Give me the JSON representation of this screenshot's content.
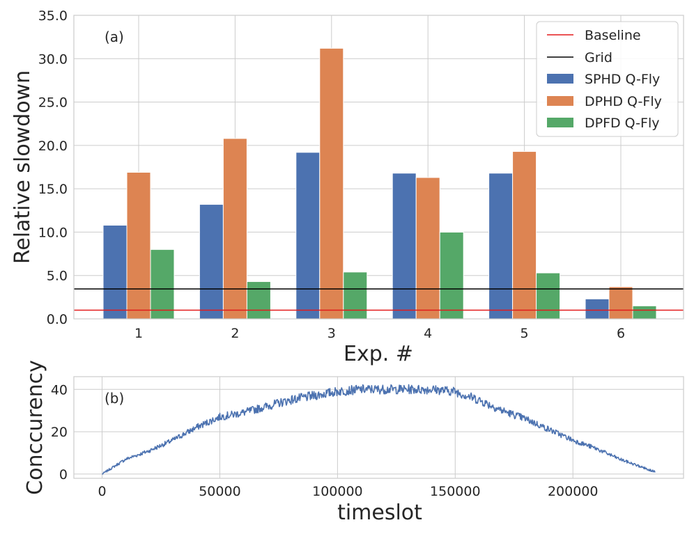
{
  "chart_data": [
    {
      "type": "bar",
      "panel_label": "(a)",
      "xlabel": "Exp. #",
      "ylabel": "Relative slowdown",
      "categories": [
        "1",
        "2",
        "3",
        "4",
        "5",
        "6"
      ],
      "ylim": [
        0,
        35
      ],
      "yticks": [
        0,
        5,
        10,
        15,
        20,
        25,
        30,
        35
      ],
      "ytick_labels": [
        "0.0",
        "5.0",
        "10.0",
        "15.0",
        "20.0",
        "25.0",
        "30.0",
        "35.0"
      ],
      "series": [
        {
          "name": "SPHD Q-Fly",
          "color": "#4c72b0",
          "values": [
            10.8,
            13.2,
            19.2,
            16.8,
            16.8,
            2.3
          ]
        },
        {
          "name": "DPHD Q-Fly",
          "color": "#dd8452",
          "values": [
            16.9,
            20.8,
            31.2,
            16.3,
            19.3,
            3.7
          ]
        },
        {
          "name": "DPFD Q-Fly",
          "color": "#55a868",
          "values": [
            8.0,
            4.3,
            5.4,
            10.0,
            5.3,
            1.5
          ]
        }
      ],
      "reference_lines": [
        {
          "name": "Baseline",
          "color": "#e31a1c",
          "value": 1.0
        },
        {
          "name": "Grid",
          "color": "#000000",
          "value": 3.45
        }
      ],
      "legend": {
        "placement": "top-right",
        "entries": [
          "Baseline",
          "Grid",
          "SPHD Q-Fly",
          "DPHD Q-Fly",
          "DPFD Q-Fly"
        ]
      },
      "grid": true
    },
    {
      "type": "line",
      "panel_label": "(b)",
      "xlabel": "timeslot",
      "ylabel": "Conccurency",
      "xlim": [
        -12000,
        247000
      ],
      "ylim": [
        -2,
        46
      ],
      "xticks": [
        0,
        50000,
        100000,
        150000,
        200000
      ],
      "xtick_labels": [
        "0",
        "50000",
        "100000",
        "150000",
        "200000"
      ],
      "yticks": [
        0,
        20,
        40
      ],
      "ytick_labels": [
        "0",
        "20",
        "40"
      ],
      "series": [
        {
          "name": "Conccurency",
          "color": "#4c72b0",
          "x": [
            0,
            10000,
            20000,
            30000,
            40000,
            50000,
            60000,
            70000,
            80000,
            90000,
            100000,
            110000,
            120000,
            130000,
            140000,
            150000,
            160000,
            170000,
            180000,
            190000,
            200000,
            210000,
            220000,
            230000,
            235000
          ],
          "values": [
            0,
            7,
            11,
            16,
            22,
            27,
            29,
            32,
            35,
            37,
            39,
            40,
            40,
            40,
            40,
            39,
            35,
            30,
            26,
            21,
            16,
            12,
            7,
            3,
            1
          ]
        }
      ],
      "grid": true
    }
  ]
}
